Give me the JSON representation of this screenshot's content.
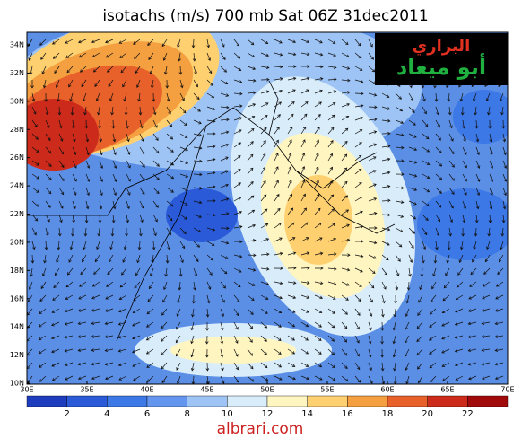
{
  "title": "isotachs (m/s) 700 mb Sat 06Z 31dec2011",
  "latitude_labels": [
    "34N",
    "32N",
    "30N",
    "28N",
    "26N",
    "24N",
    "22N",
    "20N",
    "18N",
    "16N",
    "14N",
    "12N",
    "10N"
  ],
  "longitude_labels": [
    "30E",
    "35E",
    "40E",
    "45E",
    "50E",
    "55E",
    "60E",
    "65E",
    "70E"
  ],
  "colorbar": {
    "labels": [
      "2",
      "4",
      "6",
      "8",
      "10",
      "12",
      "14",
      "16",
      "18",
      "20",
      "22"
    ]
  },
  "logo": {
    "line1": "البراري",
    "line2": "أبو ميعاد"
  },
  "watermark": "albrari.com"
}
